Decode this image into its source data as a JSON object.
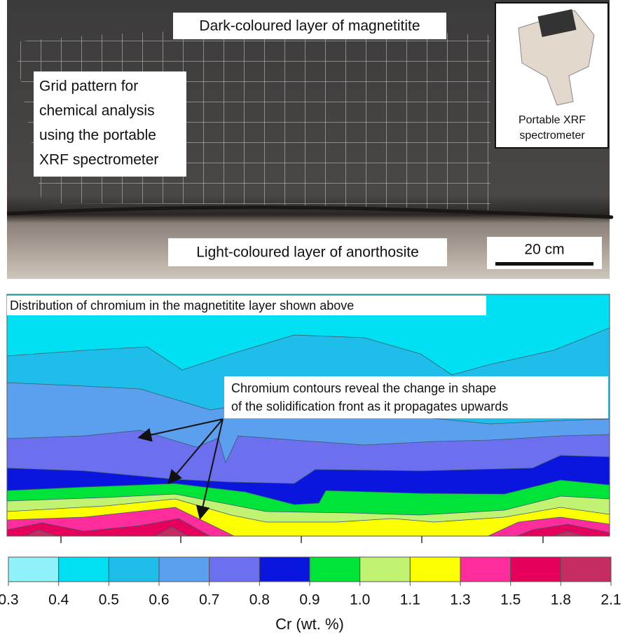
{
  "photo": {
    "top_label": "Dark-coloured layer of magnetitite",
    "grid_label": [
      "Grid pattern for",
      "chemical analysis",
      "using the portable",
      "XRF spectrometer"
    ],
    "bottom_label": "Light-coloured layer of anorthosite",
    "scale_bar": "20 cm",
    "inset_caption": [
      "Portable XRF",
      "spectrometer"
    ]
  },
  "contour_map": {
    "title": "Distribution of chromium in the magnetitite layer shown above",
    "annotation": [
      "Chromium contours reveal the change in shape",
      "of the solidification front as it propagates upwards"
    ]
  },
  "colorbar": {
    "label": "Cr (wt. %)",
    "ticks": [
      0.3,
      0.4,
      0.5,
      0.6,
      0.7,
      0.8,
      0.9,
      {
        "value": 1,
        "label": "1.0"
      },
      1.1,
      1.3,
      1.5,
      1.8,
      2.1
    ],
    "colors": [
      "#8ef2f8",
      "#00e0f2",
      "#1ebdea",
      "#5aa0ee",
      "#6c70ee",
      "#0a16de",
      "#00e43a",
      "#c2f272",
      "#fbff00",
      "#ff2c9c",
      "#e6005c",
      "#c42c62"
    ]
  }
}
